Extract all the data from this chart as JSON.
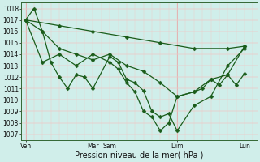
{
  "background_color": "#d0eeea",
  "grid_color_major": "#e8a0a0",
  "grid_color_minor": "#f0c8c8",
  "line_color": "#1a5c1a",
  "title": "Pression niveau de la mer( hPa )",
  "ylabel_values": [
    1007,
    1008,
    1009,
    1010,
    1011,
    1012,
    1013,
    1014,
    1015,
    1016,
    1017,
    1018
  ],
  "xtick_labels": [
    "Ven",
    "Mar",
    "Sam",
    "Dim",
    "Lun"
  ],
  "xtick_positions": [
    0,
    8,
    10,
    18,
    26
  ],
  "day_lines": [
    0,
    8,
    10,
    18,
    26
  ],
  "xlim": [
    -0.5,
    27.5
  ],
  "ylim": [
    1006.5,
    1018.5
  ],
  "lines": [
    {
      "x": [
        0,
        1,
        2,
        3,
        4,
        5,
        6,
        7,
        8,
        10,
        11,
        12,
        13,
        14,
        15,
        16,
        17,
        18,
        20,
        22,
        24,
        26
      ],
      "y": [
        1017.0,
        1018.0,
        1016.0,
        1013.3,
        1012.0,
        1011.0,
        1012.2,
        1012.0,
        1011.0,
        1013.8,
        1013.3,
        1011.8,
        1011.5,
        1010.8,
        1009.0,
        1008.5,
        1008.8,
        1007.3,
        1009.5,
        1010.3,
        1013.0,
        1014.5
      ]
    },
    {
      "x": [
        0,
        2,
        4,
        6,
        8,
        10,
        12,
        14,
        16,
        18,
        20,
        22,
        24,
        26
      ],
      "y": [
        1017.0,
        1016.0,
        1014.5,
        1014.0,
        1013.5,
        1014.0,
        1013.0,
        1012.5,
        1011.5,
        1010.3,
        1010.7,
        1011.8,
        1012.2,
        1014.7
      ]
    },
    {
      "x": [
        0,
        4,
        8,
        12,
        16,
        20,
        24,
        26
      ],
      "y": [
        1017.0,
        1016.5,
        1016.0,
        1015.5,
        1015.0,
        1014.5,
        1014.5,
        1014.7
      ]
    },
    {
      "x": [
        0,
        2,
        4,
        6,
        8,
        10,
        11,
        12,
        13,
        14,
        15,
        16,
        17,
        18,
        20,
        21,
        22,
        23,
        24,
        25,
        26
      ],
      "y": [
        1017.0,
        1013.3,
        1014.0,
        1013.0,
        1014.0,
        1013.3,
        1012.7,
        1011.5,
        1010.7,
        1009.0,
        1008.5,
        1007.3,
        1008.0,
        1010.3,
        1010.7,
        1011.0,
        1011.8,
        1011.3,
        1012.2,
        1011.3,
        1012.3
      ]
    }
  ],
  "markersize": 2.5,
  "linewidth": 0.9,
  "tick_fontsize": 5.5,
  "label_fontsize": 7
}
